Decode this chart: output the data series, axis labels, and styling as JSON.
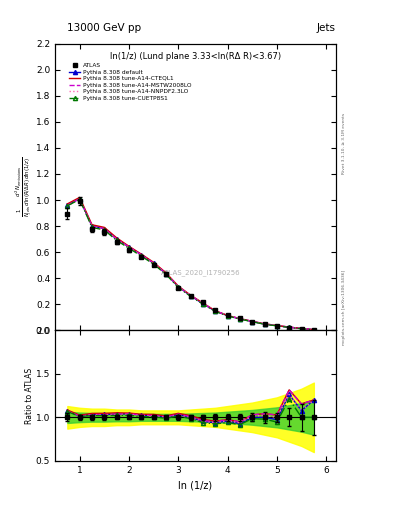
{
  "title_left": "13000 GeV pp",
  "title_right": "Jets",
  "subplot_title": "ln(1/z) (Lund plane 3.33<ln(RΔ R)<3.67)",
  "ylabel_main": "$\\frac{1}{N_{jets}}\\frac{d^2 N_{emissions}}{d\\ln(R/\\Delta R)\\,d\\ln(1/z)}$",
  "ylabel_ratio": "Ratio to ATLAS",
  "xlabel": "ln (1/z)",
  "right_label_top": "Rivet 3.1.10, ≥ 3.1M events",
  "right_label_bottom": "mcplots.cern.ch [arXiv:1306.3436]",
  "watermark": "ATLAS_2020_I1790256",
  "atlas_x": [
    0.75,
    1.0,
    1.25,
    1.5,
    1.75,
    2.0,
    2.25,
    2.5,
    2.75,
    3.0,
    3.25,
    3.5,
    3.75,
    4.0,
    4.25,
    4.5,
    4.75,
    5.0,
    5.25,
    5.5,
    5.75
  ],
  "atlas_y": [
    0.895,
    0.995,
    0.775,
    0.755,
    0.675,
    0.615,
    0.565,
    0.505,
    0.435,
    0.325,
    0.265,
    0.215,
    0.158,
    0.118,
    0.095,
    0.068,
    0.048,
    0.037,
    0.019,
    0.013,
    0.005
  ],
  "atlas_yerr": [
    0.04,
    0.03,
    0.02,
    0.02,
    0.015,
    0.015,
    0.012,
    0.012,
    0.01,
    0.009,
    0.008,
    0.007,
    0.006,
    0.005,
    0.004,
    0.003,
    0.003,
    0.002,
    0.002,
    0.002,
    0.001
  ],
  "atlas_band_yellow": [
    0.13,
    0.11,
    0.1,
    0.1,
    0.09,
    0.09,
    0.08,
    0.08,
    0.08,
    0.08,
    0.09,
    0.1,
    0.11,
    0.13,
    0.15,
    0.17,
    0.2,
    0.23,
    0.28,
    0.33,
    0.4
  ],
  "atlas_band_green": [
    0.065,
    0.055,
    0.05,
    0.05,
    0.045,
    0.045,
    0.04,
    0.04,
    0.04,
    0.04,
    0.045,
    0.05,
    0.055,
    0.065,
    0.075,
    0.085,
    0.1,
    0.115,
    0.14,
    0.165,
    0.2
  ],
  "default_x": [
    0.75,
    1.0,
    1.25,
    1.5,
    1.75,
    2.0,
    2.25,
    2.5,
    2.75,
    3.0,
    3.25,
    3.5,
    3.75,
    4.0,
    4.25,
    4.5,
    4.75,
    5.0,
    5.25,
    5.5,
    5.75
  ],
  "default_y": [
    0.96,
    1.01,
    0.8,
    0.78,
    0.7,
    0.64,
    0.58,
    0.515,
    0.435,
    0.335,
    0.265,
    0.205,
    0.148,
    0.113,
    0.088,
    0.068,
    0.048,
    0.036,
    0.024,
    0.014,
    0.006
  ],
  "cteql1_x": [
    0.75,
    1.0,
    1.25,
    1.5,
    1.75,
    2.0,
    2.25,
    2.5,
    2.75,
    3.0,
    3.25,
    3.5,
    3.75,
    4.0,
    4.25,
    4.5,
    4.75,
    5.0,
    5.25,
    5.5,
    5.75
  ],
  "cteql1_y": [
    0.97,
    1.02,
    0.81,
    0.79,
    0.71,
    0.645,
    0.585,
    0.522,
    0.442,
    0.34,
    0.27,
    0.21,
    0.151,
    0.115,
    0.09,
    0.07,
    0.05,
    0.038,
    0.025,
    0.015,
    0.006
  ],
  "mstw_x": [
    0.75,
    1.0,
    1.25,
    1.5,
    1.75,
    2.0,
    2.25,
    2.5,
    2.75,
    3.0,
    3.25,
    3.5,
    3.75,
    4.0,
    4.25,
    4.5,
    4.75,
    5.0,
    5.25,
    5.5,
    5.75
  ],
  "mstw_y": [
    0.96,
    1.01,
    0.8,
    0.78,
    0.7,
    0.64,
    0.58,
    0.516,
    0.437,
    0.337,
    0.267,
    0.207,
    0.15,
    0.115,
    0.09,
    0.07,
    0.05,
    0.038,
    0.025,
    0.015,
    0.006
  ],
  "nnpdf_x": [
    0.75,
    1.0,
    1.25,
    1.5,
    1.75,
    2.0,
    2.25,
    2.5,
    2.75,
    3.0,
    3.25,
    3.5,
    3.75,
    4.0,
    4.25,
    4.5,
    4.75,
    5.0,
    5.25,
    5.5,
    5.75
  ],
  "nnpdf_y": [
    0.955,
    1.005,
    0.795,
    0.775,
    0.695,
    0.635,
    0.575,
    0.512,
    0.433,
    0.333,
    0.264,
    0.204,
    0.148,
    0.113,
    0.089,
    0.069,
    0.049,
    0.037,
    0.024,
    0.014,
    0.006
  ],
  "cuetp_x": [
    0.75,
    1.0,
    1.25,
    1.5,
    1.75,
    2.0,
    2.25,
    2.5,
    2.75,
    3.0,
    3.25,
    3.5,
    3.75,
    4.0,
    4.25,
    4.5,
    4.75,
    5.0,
    5.25,
    5.5,
    5.75
  ],
  "cuetp_y": [
    0.955,
    1.005,
    0.79,
    0.77,
    0.69,
    0.63,
    0.57,
    0.508,
    0.43,
    0.33,
    0.261,
    0.202,
    0.146,
    0.111,
    0.087,
    0.067,
    0.047,
    0.035,
    0.023,
    0.013,
    0.005
  ],
  "ratio_default_y": [
    1.072,
    1.015,
    1.032,
    1.033,
    1.037,
    1.041,
    1.026,
    1.02,
    1.0,
    1.031,
    1.0,
    0.953,
    0.937,
    0.958,
    0.926,
    1.0,
    1.0,
    0.973,
    1.263,
    1.077,
    1.2
  ],
  "ratio_cteql1_y": [
    1.084,
    1.025,
    1.045,
    1.046,
    1.052,
    1.049,
    1.035,
    1.034,
    1.016,
    1.046,
    1.019,
    0.977,
    0.956,
    0.975,
    0.947,
    1.029,
    1.042,
    1.027,
    1.316,
    1.154,
    1.2
  ],
  "ratio_mstw_y": [
    1.072,
    1.015,
    1.032,
    1.033,
    1.037,
    1.041,
    1.026,
    1.022,
    1.005,
    1.037,
    1.008,
    0.963,
    0.949,
    0.975,
    0.947,
    1.029,
    1.042,
    1.027,
    1.316,
    1.154,
    1.2
  ],
  "ratio_nnpdf_y": [
    1.067,
    1.01,
    1.026,
    1.026,
    1.03,
    1.033,
    1.018,
    1.014,
    0.996,
    1.025,
    0.996,
    0.949,
    0.937,
    0.958,
    0.937,
    1.015,
    1.021,
    1.0,
    1.263,
    1.077,
    1.2
  ],
  "ratio_cuetp_y": [
    1.067,
    1.01,
    1.019,
    1.02,
    1.022,
    1.024,
    1.009,
    1.006,
    0.989,
    1.015,
    0.985,
    0.94,
    0.924,
    0.941,
    0.916,
    0.985,
    0.979,
    0.946,
    1.21,
    1.0,
    1.0
  ],
  "color_default": "#0000cc",
  "color_cteql1": "#cc0000",
  "color_mstw": "#cc00cc",
  "color_nnpdf": "#ff69b4",
  "color_cuetp": "#007700",
  "ylim_main": [
    0.0,
    2.2
  ],
  "ylim_ratio": [
    0.5,
    2.0
  ],
  "xlim": [
    0.5,
    6.2
  ],
  "yticks_main": [
    0.0,
    0.2,
    0.4,
    0.6,
    0.8,
    1.0,
    1.2,
    1.4,
    1.6,
    1.8,
    2.0,
    2.2
  ],
  "yticks_ratio": [
    0.5,
    1.0,
    1.5,
    2.0
  ]
}
